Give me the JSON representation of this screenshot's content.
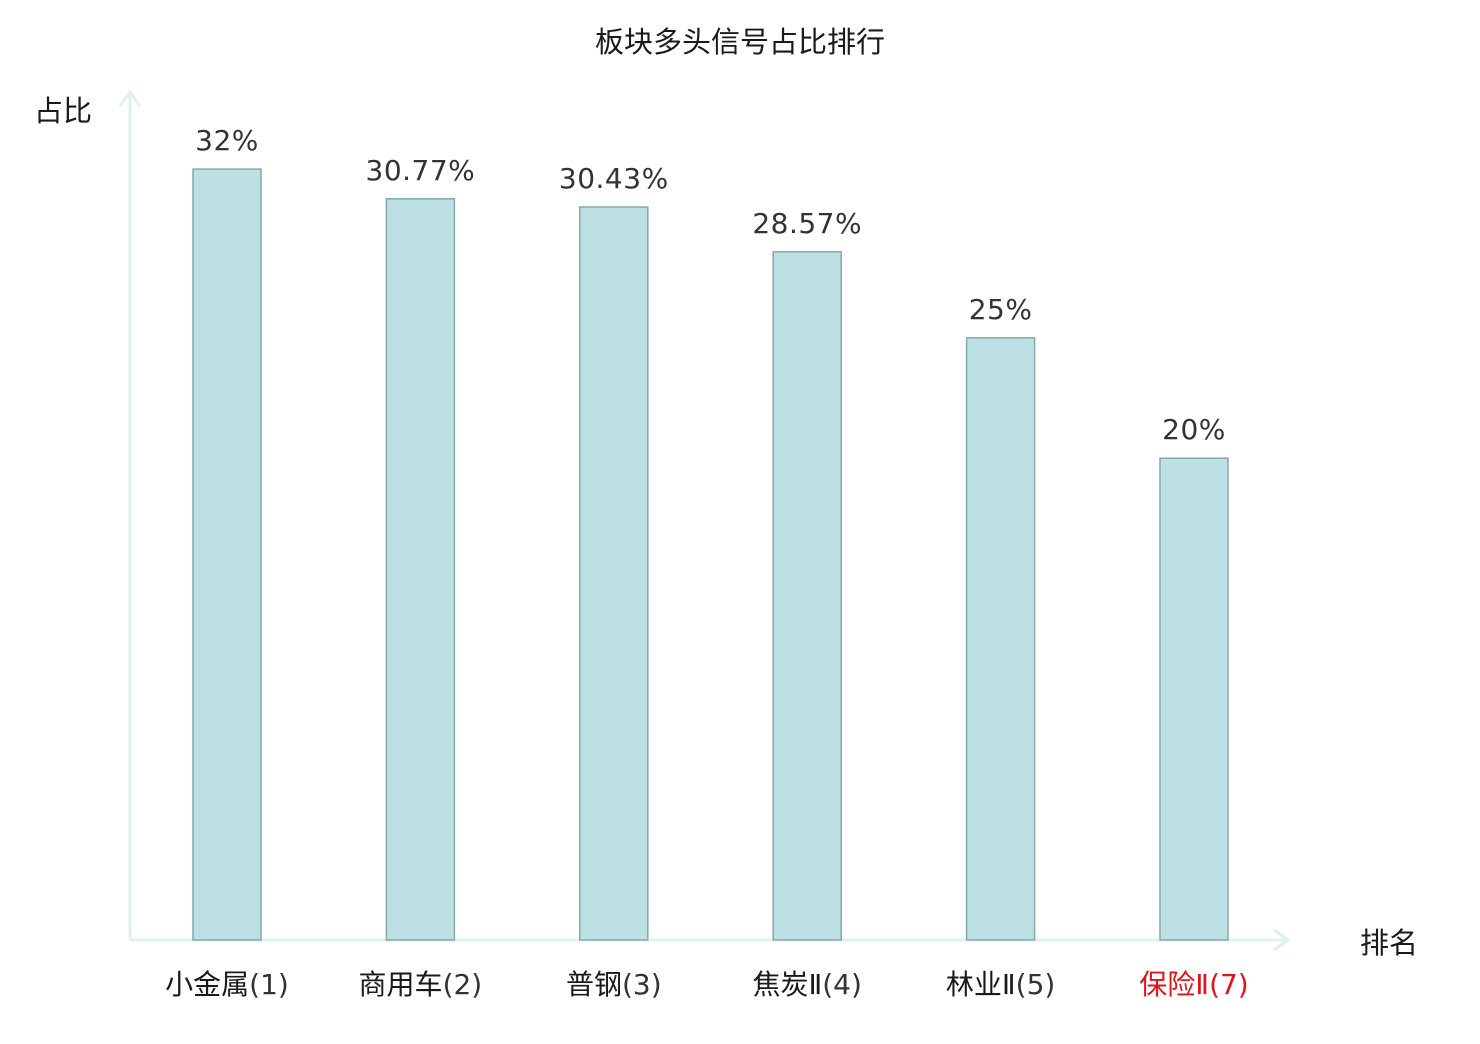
{
  "chart_data": {
    "type": "bar",
    "title": "板块多头信号占比排行",
    "ylabel": "占比",
    "xlabel": "排名",
    "ylim": [
      0,
      33.5
    ],
    "grid": false,
    "legend": "none",
    "categories": [
      {
        "name": "小金属",
        "rank": "(1)",
        "highlight": false
      },
      {
        "name": "商用车",
        "rank": "(2)",
        "highlight": false
      },
      {
        "name": "普钢",
        "rank": "(3)",
        "highlight": false
      },
      {
        "name": "焦炭Ⅱ",
        "rank": "(4)",
        "highlight": false
      },
      {
        "name": "林业Ⅱ",
        "rank": "(5)",
        "highlight": false
      },
      {
        "name": "保险Ⅱ",
        "rank": "(7)",
        "highlight": true
      }
    ],
    "values": [
      32,
      30.77,
      30.43,
      28.57,
      25,
      20
    ],
    "value_labels": [
      "32%",
      "30.77%",
      "30.43%",
      "28.57%",
      "25%",
      "20%"
    ],
    "colors": {
      "bar_fill": "#bce0e3",
      "bar_stroke": "#86a8aa",
      "axis": "#dff2ef",
      "text": "#1a1a1a",
      "rank_text": "#333333",
      "value_text": "#333333",
      "highlight": "#e0141a"
    }
  }
}
